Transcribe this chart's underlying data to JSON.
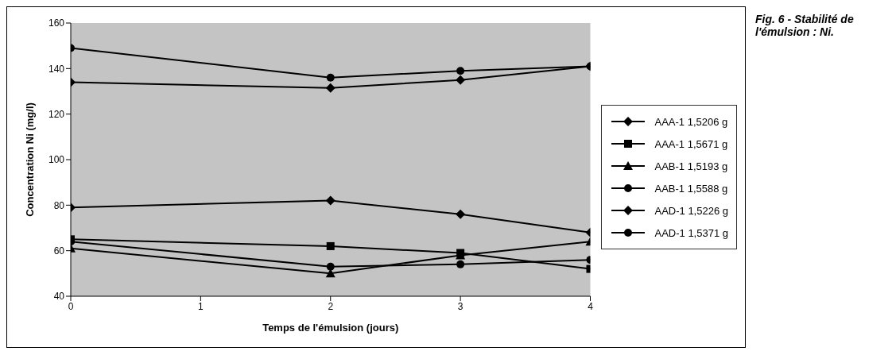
{
  "chart_data": {
    "type": "line",
    "title": "Fig. 6 - Stabilité de l'émulsion : Ni.",
    "xlabel": "Temps de l'émulsion (jours)",
    "ylabel": "Concentration Ni (mg/l)",
    "x": [
      0,
      2,
      3,
      4
    ],
    "xlim": [
      0,
      4
    ],
    "xticks": [
      0,
      1,
      2,
      3,
      4
    ],
    "ylim": [
      40,
      160
    ],
    "yticks": [
      40,
      60,
      80,
      100,
      120,
      140,
      160
    ],
    "grid": false,
    "legend": "right",
    "line_style": "solid",
    "series": [
      {
        "name": "AAA-1 1,5206 g",
        "color": "#000000",
        "marker": "diamond",
        "values": [
          134,
          131.5,
          135,
          141
        ]
      },
      {
        "name": "AAA-1 1,5671 g",
        "color": "#000000",
        "marker": "square",
        "values": [
          65,
          62,
          59,
          52
        ]
      },
      {
        "name": "AAB-1 1,5193 g",
        "color": "#000000",
        "marker": "triangle",
        "values": [
          61,
          50,
          58,
          64
        ]
      },
      {
        "name": "AAB-1 1,5588 g",
        "color": "#000000",
        "marker": "circle",
        "values": [
          64,
          53,
          54,
          56
        ]
      },
      {
        "name": "AAD-1 1,5226 g",
        "color": "#000000",
        "marker": "diamond",
        "values": [
          79,
          82,
          76,
          68
        ]
      },
      {
        "name": "AAD-1 1,5371 g",
        "color": "#000000",
        "marker": "circle",
        "values": [
          149,
          136,
          139,
          141
        ]
      }
    ]
  }
}
